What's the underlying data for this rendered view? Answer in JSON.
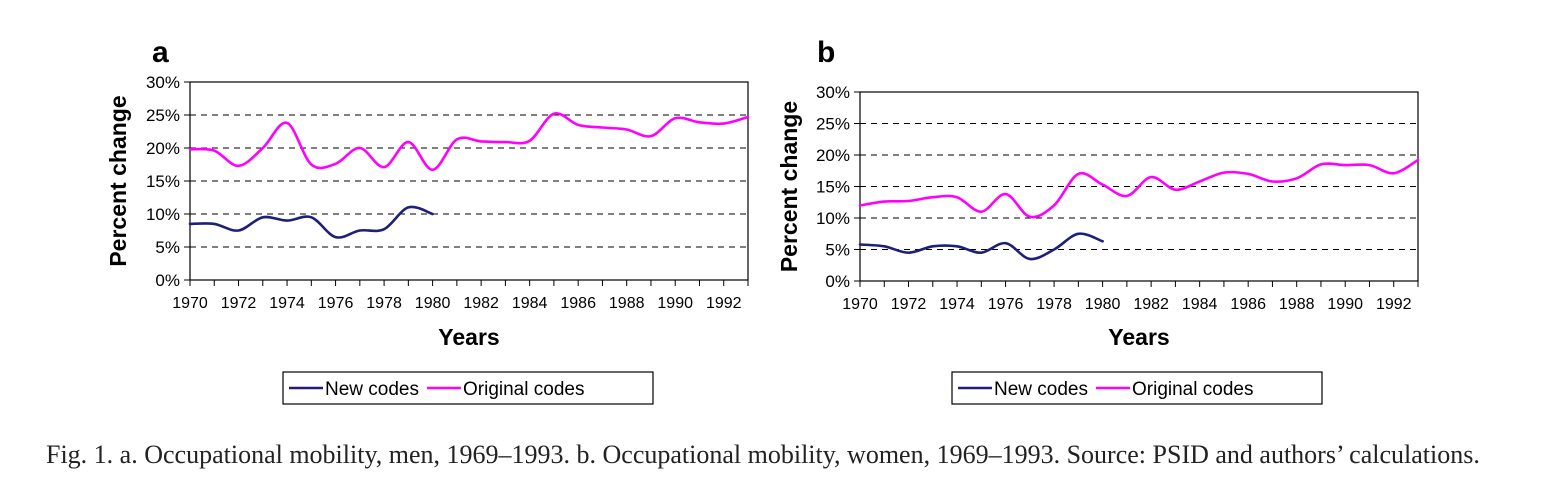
{
  "chart_data": [
    {
      "panel": "a",
      "type": "line",
      "xlabel": "Years",
      "ylabel": "Percent change",
      "xlim": [
        1970,
        1993
      ],
      "ylim": [
        0,
        30
      ],
      "x_ticks": [
        "1970",
        "1972",
        "1974",
        "1976",
        "1978",
        "1980",
        "1982",
        "1984",
        "1986",
        "1988",
        "1990",
        "1992"
      ],
      "y_ticks": [
        "0%",
        "5%",
        "10%",
        "15%",
        "20%",
        "25%",
        "30%"
      ],
      "grid": "horizontal dashed",
      "legend": "bottom",
      "series": [
        {
          "name": "New codes",
          "color": "#1f1f7a",
          "x": [
            1970,
            1971,
            1972,
            1973,
            1974,
            1975,
            1976,
            1977,
            1978,
            1979,
            1980
          ],
          "y": [
            8.5,
            8.5,
            7.5,
            9.5,
            9.0,
            9.5,
            6.5,
            7.5,
            7.7,
            11.0,
            10.0
          ]
        },
        {
          "name": "Original codes",
          "color": "#ff00ff",
          "x": [
            1970,
            1971,
            1972,
            1973,
            1974,
            1975,
            1976,
            1977,
            1978,
            1979,
            1980,
            1981,
            1982,
            1983,
            1984,
            1985,
            1986,
            1987,
            1988,
            1989,
            1990,
            1991,
            1992,
            1993
          ],
          "y": [
            19.8,
            19.6,
            17.3,
            20.0,
            23.8,
            17.5,
            17.6,
            20.0,
            17.1,
            20.9,
            16.7,
            21.3,
            21.0,
            20.9,
            21.1,
            25.2,
            23.5,
            23.1,
            22.8,
            21.8,
            24.5,
            23.9,
            23.7,
            24.7
          ]
        }
      ]
    },
    {
      "panel": "b",
      "type": "line",
      "xlabel": "Years",
      "ylabel": "Percent change",
      "xlim": [
        1970,
        1993
      ],
      "ylim": [
        0,
        30
      ],
      "x_ticks": [
        "1970",
        "1972",
        "1974",
        "1976",
        "1978",
        "1980",
        "1982",
        "1984",
        "1986",
        "1988",
        "1990",
        "1992"
      ],
      "y_ticks": [
        "0%",
        "5%",
        "10%",
        "15%",
        "20%",
        "25%",
        "30%"
      ],
      "grid": "horizontal dashed",
      "legend": "bottom",
      "series": [
        {
          "name": "New codes",
          "color": "#1f1f7a",
          "x": [
            1970,
            1971,
            1972,
            1973,
            1974,
            1975,
            1976,
            1977,
            1978,
            1979,
            1980
          ],
          "y": [
            5.8,
            5.5,
            4.5,
            5.5,
            5.5,
            4.5,
            6.0,
            3.5,
            5.0,
            7.5,
            6.3
          ]
        },
        {
          "name": "Original codes",
          "color": "#ff00ff",
          "x": [
            1970,
            1971,
            1972,
            1973,
            1974,
            1975,
            1976,
            1977,
            1978,
            1979,
            1980,
            1981,
            1982,
            1983,
            1984,
            1985,
            1986,
            1987,
            1988,
            1989,
            1990,
            1991,
            1992,
            1993
          ],
          "y": [
            12.0,
            12.6,
            12.7,
            13.3,
            13.3,
            11.0,
            13.8,
            10.2,
            12.0,
            17.0,
            15.3,
            13.5,
            16.5,
            14.5,
            15.8,
            17.2,
            17.0,
            15.8,
            16.3,
            18.5,
            18.4,
            18.4,
            17.1,
            19.2
          ]
        }
      ]
    }
  ],
  "caption": "Fig. 1. a. Occupational mobility, men, 1969–1993. b. Occupational mobility, women, 1969–1993. Source: PSID and authors’ calculations."
}
